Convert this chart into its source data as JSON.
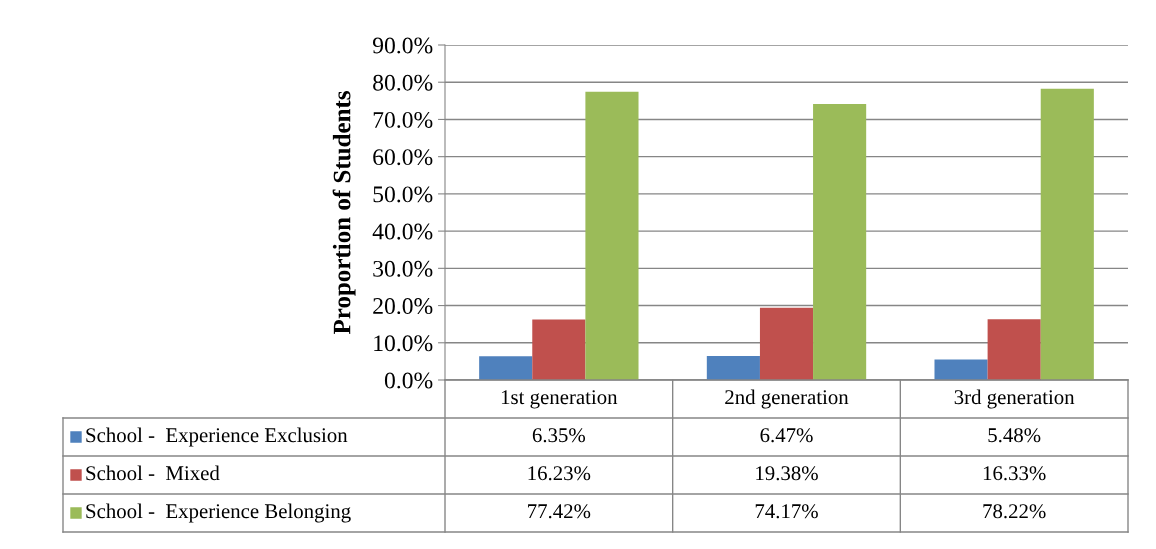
{
  "chart_data": {
    "type": "bar",
    "ylabel": "Proportion of Students",
    "categories": [
      "1st generation",
      "2nd generation",
      "3rd generation"
    ],
    "series": [
      {
        "name": "School -  Experience Exclusion",
        "color": "#4f81bd",
        "values": [
          6.35,
          6.47,
          5.48
        ],
        "value_labels": [
          "6.35%",
          "6.47%",
          "5.48%"
        ]
      },
      {
        "name": "School -  Mixed",
        "color": "#c0504d",
        "values": [
          16.23,
          19.38,
          16.33
        ],
        "value_labels": [
          "16.23%",
          "19.38%",
          "16.33%"
        ]
      },
      {
        "name": "School -  Experience Belonging",
        "color": "#9bbb59",
        "values": [
          77.42,
          74.17,
          78.22
        ],
        "value_labels": [
          "77.42%",
          "74.17%",
          "78.22%"
        ]
      }
    ],
    "ylim": [
      0,
      90
    ],
    "yticks": [
      {
        "value": 0,
        "label": "0.0%"
      },
      {
        "value": 10,
        "label": "10.0%"
      },
      {
        "value": 20,
        "label": "20.0%"
      },
      {
        "value": 30,
        "label": "30.0%"
      },
      {
        "value": 40,
        "label": "40.0%"
      },
      {
        "value": 50,
        "label": "50.0%"
      },
      {
        "value": 60,
        "label": "60.0%"
      },
      {
        "value": 70,
        "label": "70.0%"
      },
      {
        "value": 80,
        "label": "80.0%"
      },
      {
        "value": 90,
        "label": "90.0%"
      }
    ],
    "grid": "y",
    "legend": "bottom left"
  }
}
